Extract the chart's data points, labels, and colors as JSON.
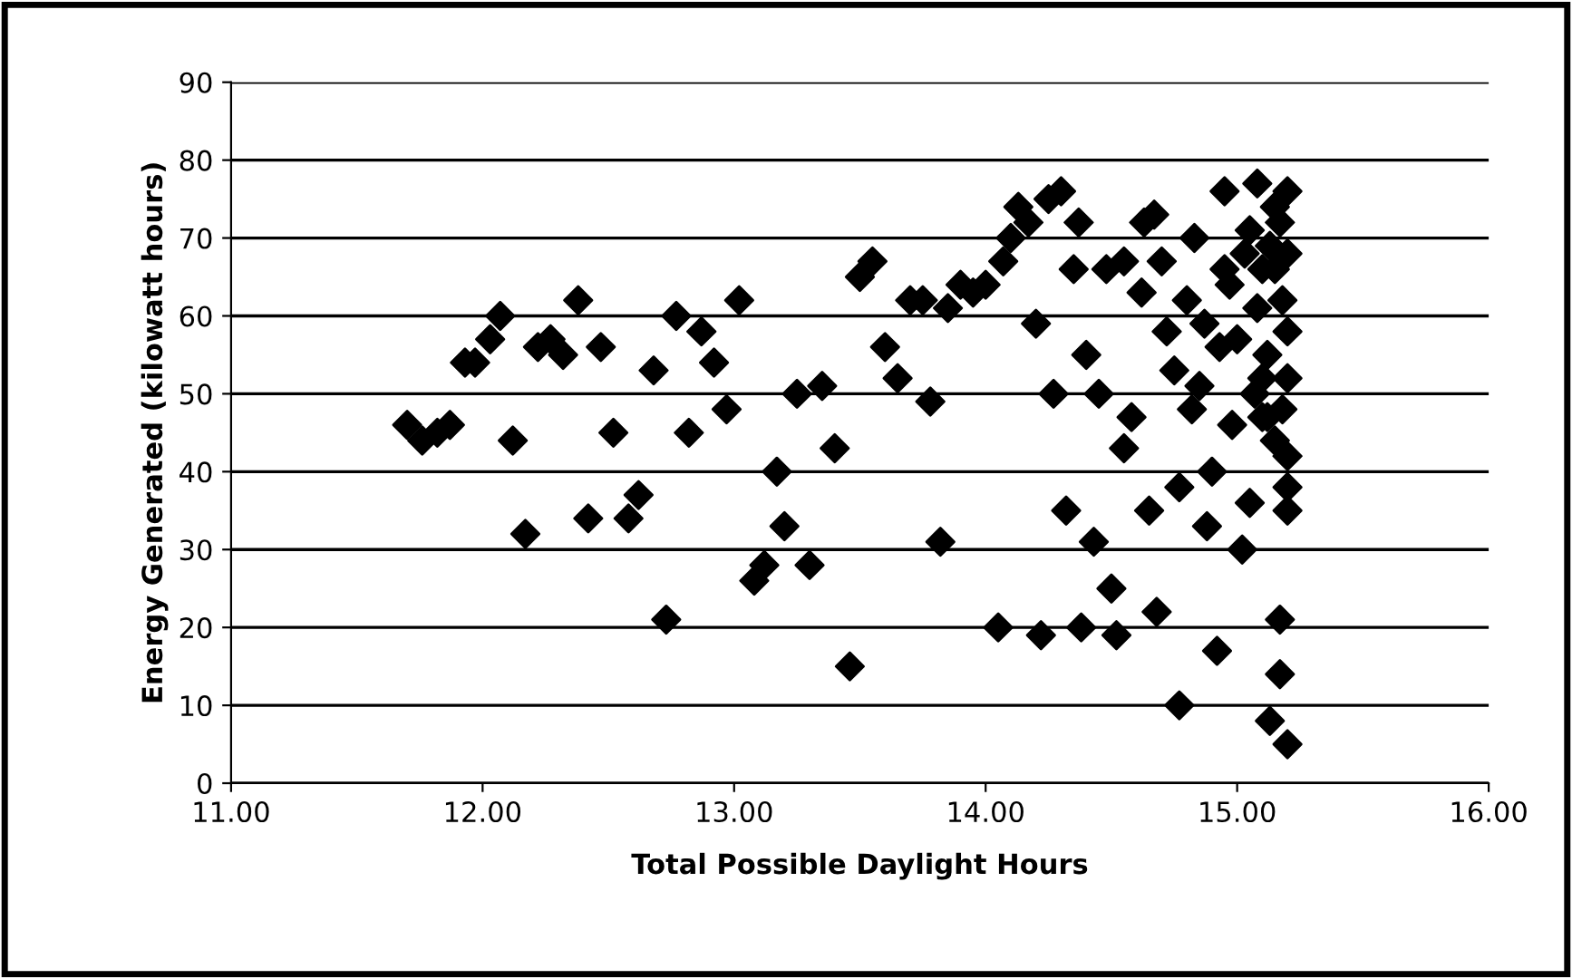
{
  "chart_data": {
    "type": "scatter",
    "xlabel": "Total Possible Daylight Hours",
    "ylabel": "Energy Generated (kilowatt hours)",
    "x": [
      11.7,
      11.76,
      11.82,
      11.87,
      11.93,
      11.97,
      12.03,
      12.07,
      12.12,
      12.17,
      12.22,
      12.27,
      12.32,
      12.38,
      12.42,
      12.47,
      12.52,
      12.58,
      12.62,
      12.68,
      12.73,
      12.77,
      12.82,
      12.87,
      12.92,
      12.97,
      13.02,
      13.08,
      13.12,
      13.17,
      13.2,
      13.25,
      13.3,
      13.35,
      13.4,
      13.46,
      13.5,
      13.55,
      13.6,
      13.65,
      13.7,
      13.75,
      13.78,
      13.82,
      13.85,
      13.9,
      13.95,
      14.0,
      14.05,
      14.07,
      14.1,
      14.13,
      14.17,
      14.2,
      14.22,
      14.25,
      14.27,
      14.3,
      14.32,
      14.35,
      14.37,
      14.38,
      14.4,
      14.43,
      14.45,
      14.48,
      14.5,
      14.52,
      14.55,
      14.55,
      14.58,
      14.62,
      14.63,
      14.65,
      14.67,
      14.68,
      14.7,
      14.72,
      14.75,
      14.77,
      14.77,
      14.8,
      14.82,
      14.83,
      14.85,
      14.87,
      14.88,
      14.9,
      14.92,
      14.93,
      14.95,
      14.95,
      14.97,
      14.98,
      15.0,
      15.02,
      15.03,
      15.05,
      15.05,
      15.07,
      15.08,
      15.08,
      15.1,
      15.1,
      15.12,
      15.13,
      15.13,
      15.15,
      15.15,
      15.17,
      15.17,
      15.18,
      15.18,
      15.2,
      15.2,
      15.2,
      15.2,
      15.2,
      15.2,
      15.2,
      15.2,
      15.15,
      15.12,
      15.17,
      15.1
    ],
    "values": [
      46,
      44,
      45,
      46,
      54,
      54,
      57,
      60,
      44,
      32,
      56,
      57,
      55,
      62,
      34,
      56,
      45,
      34,
      37,
      53,
      21,
      60,
      45,
      58,
      54,
      48,
      62,
      26,
      28,
      40,
      33,
      50,
      28,
      51,
      43,
      15,
      65,
      67,
      56,
      52,
      62,
      62,
      49,
      31,
      61,
      64,
      63,
      64,
      20,
      67,
      70,
      74,
      72,
      59,
      19,
      75,
      50,
      76,
      35,
      66,
      72,
      20,
      55,
      31,
      50,
      66,
      25,
      19,
      43,
      67,
      47,
      63,
      72,
      35,
      73,
      22,
      67,
      58,
      53,
      10,
      38,
      62,
      48,
      70,
      51,
      59,
      33,
      40,
      17,
      56,
      66,
      76,
      64,
      46,
      57,
      30,
      68,
      71,
      36,
      50,
      61,
      77,
      66,
      47,
      55,
      8,
      69,
      74,
      44,
      21,
      14,
      62,
      48,
      5,
      38,
      35,
      76,
      68,
      58,
      52,
      42,
      66,
      47,
      72,
      52
    ],
    "color": "#000000",
    "marker": "diamond",
    "xlim": [
      11,
      16
    ],
    "xticks": [
      {
        "value": 11,
        "label": "11.00"
      },
      {
        "value": 12,
        "label": "12.00"
      },
      {
        "value": 13,
        "label": "13.00"
      },
      {
        "value": 14,
        "label": "14.00"
      },
      {
        "value": 15,
        "label": "15.00"
      },
      {
        "value": 16,
        "label": "16.00"
      }
    ],
    "ylim": [
      0,
      90
    ],
    "yticks": [
      0,
      10,
      20,
      30,
      40,
      50,
      60,
      70,
      80,
      90
    ],
    "grid": "y",
    "legend": false
  }
}
